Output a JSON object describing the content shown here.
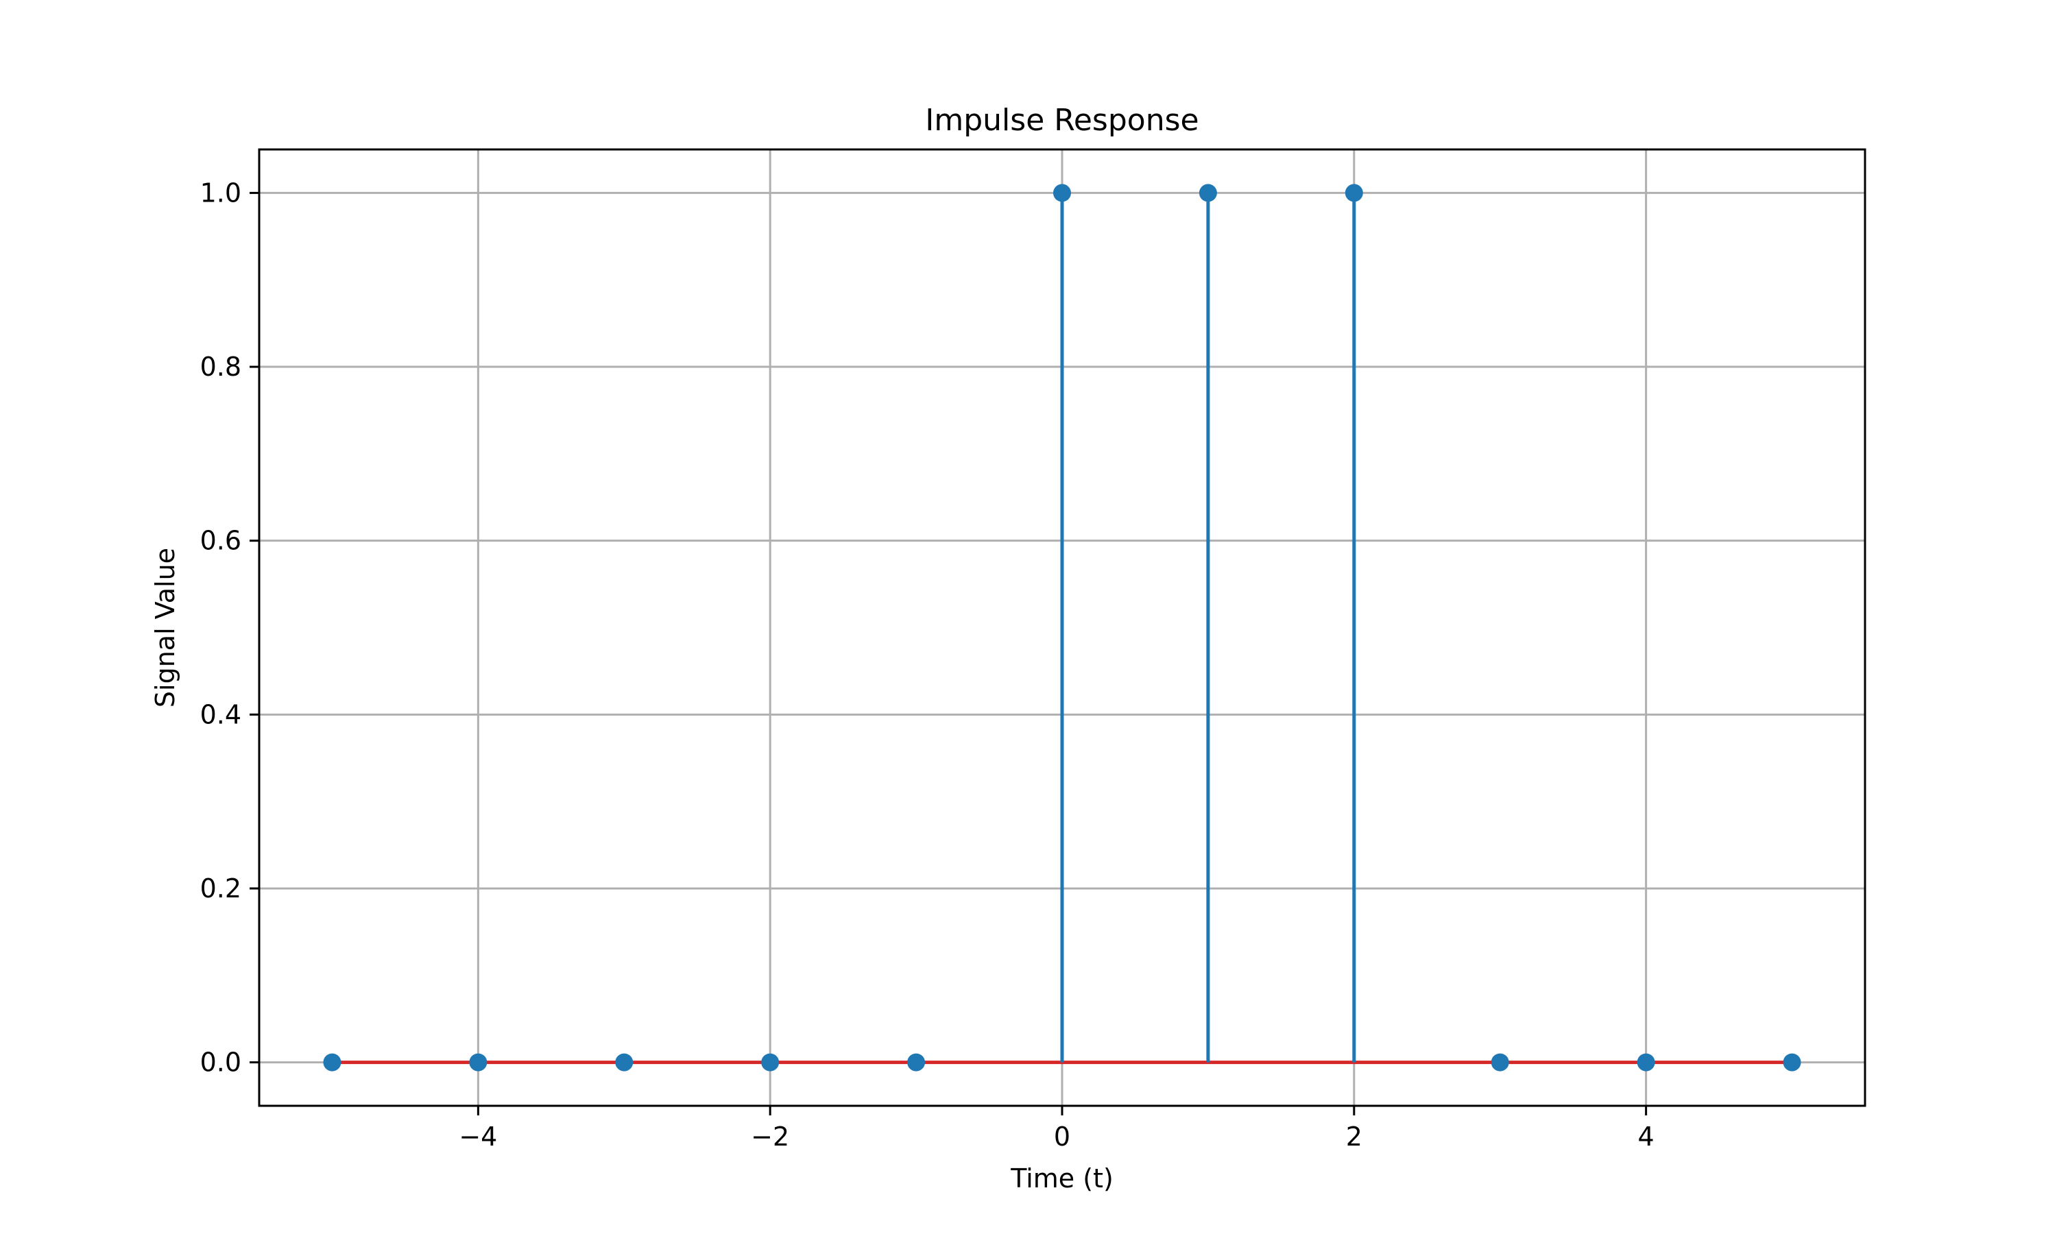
{
  "chart_data": {
    "type": "stem",
    "title": "Impulse Response",
    "xlabel": "Time (t)",
    "ylabel": "Signal Value",
    "xlim": [
      -5.5,
      5.5
    ],
    "ylim": [
      -0.05,
      1.05
    ],
    "grid": true,
    "xticks": [
      {
        "value": -4,
        "label": "−4"
      },
      {
        "value": -2,
        "label": "−2"
      },
      {
        "value": 0,
        "label": "0"
      },
      {
        "value": 2,
        "label": "2"
      },
      {
        "value": 4,
        "label": "4"
      }
    ],
    "yticks": [
      {
        "value": 0.0,
        "label": "0.0"
      },
      {
        "value": 0.2,
        "label": "0.2"
      },
      {
        "value": 0.4,
        "label": "0.4"
      },
      {
        "value": 0.6,
        "label": "0.6"
      },
      {
        "value": 0.8,
        "label": "0.8"
      },
      {
        "value": 1.0,
        "label": "1.0"
      }
    ],
    "x": [
      -5,
      -4,
      -3,
      -2,
      -1,
      0,
      1,
      2,
      3,
      4,
      5
    ],
    "y": [
      0,
      0,
      0,
      0,
      0,
      1,
      1,
      1,
      0,
      0,
      0
    ],
    "baseline": 0,
    "colors": {
      "stem": "#1f77b4",
      "marker": "#1f77b4",
      "baseline": "#d62728"
    }
  }
}
